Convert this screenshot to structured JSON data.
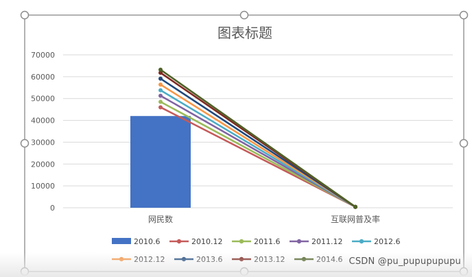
{
  "colors": {
    "frame": "#7f7f7f",
    "handle_fill": "#ffffff",
    "handle_stroke": "#8c8c8c",
    "grid": "#d9d9d9",
    "axis_text": "#595959",
    "title": "#595959"
  },
  "chart_data": {
    "type": "bar+line",
    "title": "图表标题",
    "categories": [
      "网民数",
      "互联网普及率"
    ],
    "ylim": [
      0,
      70000
    ],
    "yticks": [
      0,
      10000,
      20000,
      30000,
      40000,
      50000,
      60000,
      70000
    ],
    "grid": true,
    "legend_position": "bottom",
    "series": [
      {
        "name": "2010.6",
        "type": "bar",
        "color": "#4472c4",
        "values": [
          42000,
          0
        ]
      },
      {
        "name": "2010.12",
        "type": "line",
        "color": "#c55a5a",
        "values": [
          46000,
          400
        ]
      },
      {
        "name": "2011.6",
        "type": "line",
        "color": "#9bbb59",
        "values": [
          48500,
          400
        ]
      },
      {
        "name": "2011.12",
        "type": "line",
        "color": "#8064a2",
        "values": [
          51300,
          400
        ]
      },
      {
        "name": "2012.6",
        "type": "line",
        "color": "#4bacc6",
        "values": [
          53800,
          400
        ]
      },
      {
        "name": "2012.12",
        "type": "line",
        "color": "#f79646",
        "values": [
          56400,
          400
        ]
      },
      {
        "name": "2013.6",
        "type": "line",
        "color": "#1f497d",
        "values": [
          59100,
          400
        ]
      },
      {
        "name": "2013.12",
        "type": "line",
        "color": "#7f2a22",
        "values": [
          61800,
          400
        ]
      },
      {
        "name": "2014.6",
        "type": "line",
        "color": "#4f6228",
        "values": [
          63200,
          400
        ]
      }
    ]
  },
  "watermark": "CSDN @pu_pupupupupu"
}
